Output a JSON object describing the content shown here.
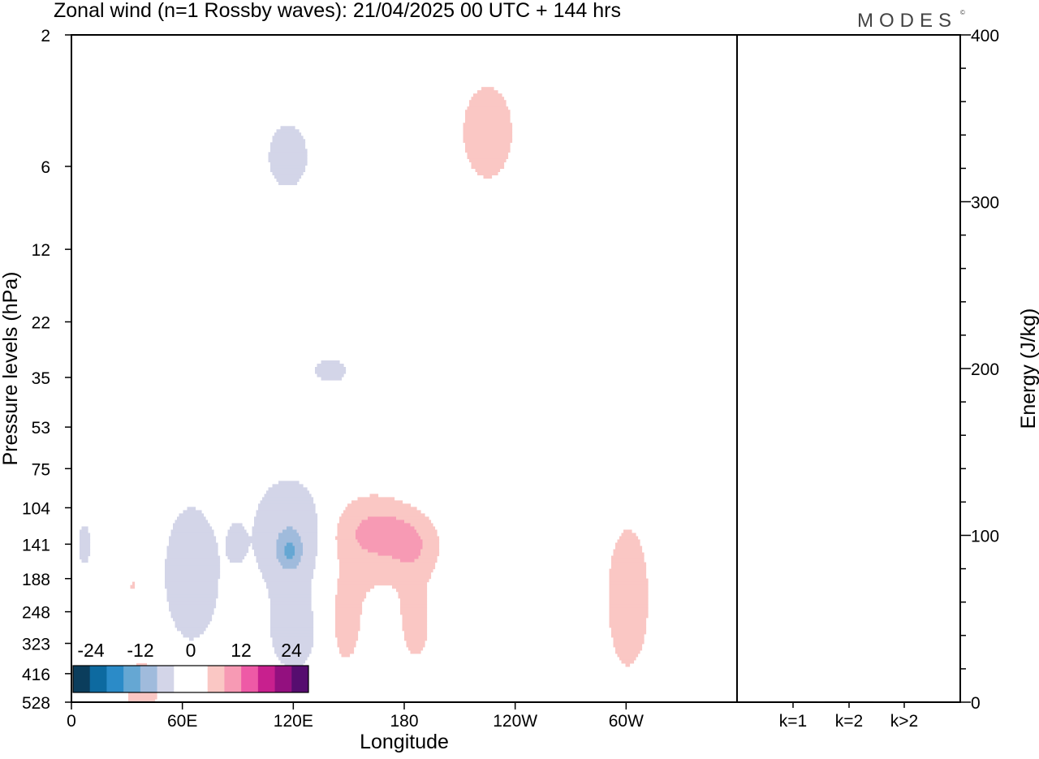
{
  "title": "Zonal wind (n=1 Rossby waves):  21/04/2025  00 UTC  + 144 hrs",
  "brand": "MODES",
  "brand_mark": "©",
  "chart_data": {
    "type": "heatmap",
    "xlabel": "Longitude",
    "ylabel": "Pressure levels (hPa)",
    "x_ticks": [
      "0",
      "60E",
      "120E",
      "180",
      "120W",
      "60W"
    ],
    "y_ticks": [
      "2",
      "6",
      "12",
      "22",
      "35",
      "53",
      "75",
      "104",
      "141",
      "188",
      "248",
      "323",
      "416",
      "528"
    ],
    "y2label": "Energy (J/kg)",
    "y2_ticks": [
      "0",
      "100",
      "200",
      "300",
      "400"
    ],
    "y2lim": [
      0,
      400
    ],
    "energy_categories": [
      "k=1",
      "k=2",
      "k>2"
    ],
    "energy_values": [
      0.5,
      0.5,
      0.5
    ],
    "colorbar": {
      "tick_labels": [
        "-24",
        "-12",
        "0",
        "12",
        "24"
      ],
      "colors": [
        "#0b3d5c",
        "#0d6aa0",
        "#2b8bc8",
        "#65a7d3",
        "#a0bbdc",
        "#d3d5e8",
        "#ffffff",
        "#ffffff",
        "#fac7c4",
        "#f79ab4",
        "#ee5aa6",
        "#c8208e",
        "#93107f",
        "#560d6f"
      ]
    },
    "contour_levels": [
      -15,
      -9,
      -3,
      3,
      9
    ],
    "contour_colors": [
      "#65a7d3",
      "#a0bbdc",
      "#d3d5e8",
      "#fac7c4",
      "#f79ab4"
    ]
  }
}
